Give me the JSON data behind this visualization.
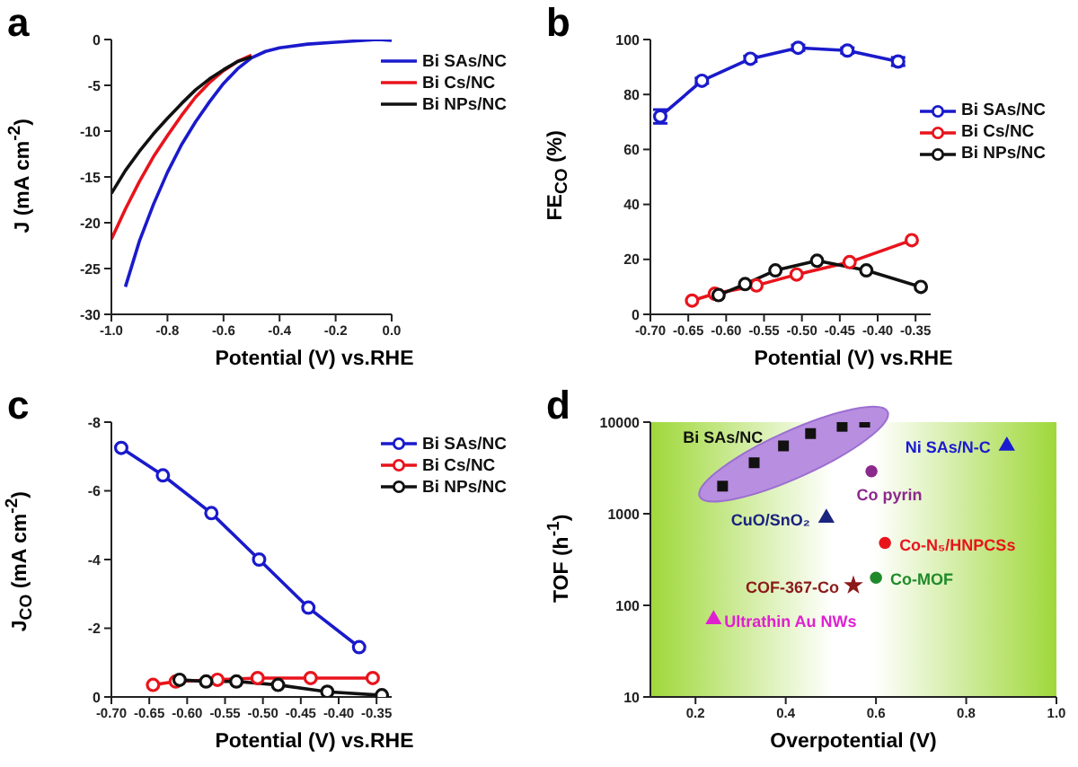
{
  "chart_data": [
    {
      "type": "line",
      "title": "a",
      "xlabel": "Potential (V) vs.RHE",
      "ylabel": "J (mA cm$^{-2}$)",
      "xlim": [
        -1.0,
        0.0
      ],
      "xticks": [
        {
          "value": -1.0,
          "label": "-1.0"
        },
        {
          "value": -0.8,
          "label": "-0.8"
        },
        {
          "value": -0.6,
          "label": "-0.6"
        },
        {
          "value": -0.4,
          "label": "-0.4"
        },
        {
          "value": -0.2,
          "label": "-0.2"
        },
        {
          "value": 0,
          "label": "0.0"
        }
      ],
      "ylim": [
        -30,
        0
      ],
      "yticks": [
        -30,
        -25,
        -20,
        -15,
        -10,
        -5,
        0
      ],
      "legend": "top right",
      "marker": "none",
      "series": [
        {
          "name": "Bi SAs/NC",
          "color": "#1a1acc",
          "x": [
            -0.95,
            -0.9,
            -0.85,
            -0.8,
            -0.75,
            -0.7,
            -0.65,
            -0.6,
            -0.55,
            -0.5,
            -0.45,
            -0.4,
            -0.3,
            -0.2,
            -0.1,
            -0.05,
            0
          ],
          "values": [
            -27,
            -22,
            -18,
            -14.5,
            -11.5,
            -9,
            -6.8,
            -4.8,
            -3.2,
            -2,
            -1.3,
            -0.9,
            -0.5,
            -0.3,
            -0.1,
            0,
            -0.1
          ]
        },
        {
          "name": "Bi Cs/NC",
          "color": "#e8141c",
          "x": [
            -1.0,
            -0.95,
            -0.9,
            -0.85,
            -0.8,
            -0.75,
            -0.7,
            -0.65,
            -0.6,
            -0.55,
            -0.5
          ],
          "values": [
            -21.8,
            -18.5,
            -15.5,
            -12.8,
            -10.5,
            -8.3,
            -6.3,
            -4.7,
            -3.4,
            -2.4,
            -1.7
          ]
        },
        {
          "name": "Bi NPs/NC",
          "color": "#111111",
          "x": [
            -1.0,
            -0.95,
            -0.9,
            -0.85,
            -0.8,
            -0.75,
            -0.7,
            -0.65,
            -0.6,
            -0.55,
            -0.5
          ],
          "values": [
            -16.8,
            -14.3,
            -12.2,
            -10.3,
            -8.6,
            -7,
            -5.5,
            -4.3,
            -3.3,
            -2.4,
            -1.9
          ]
        }
      ]
    },
    {
      "type": "line",
      "title": "b",
      "xlabel": "Potential (V) vs.RHE",
      "ylabel": "FE$_{CO}$ (%)",
      "xlim": [
        -0.7,
        -0.33
      ],
      "xticks": [
        {
          "value": -0.7,
          "label": "-0.70"
        },
        {
          "value": -0.65,
          "label": "-0.65"
        },
        {
          "value": -0.6,
          "label": "-0.60"
        },
        {
          "value": -0.55,
          "label": "-0.55"
        },
        {
          "value": -0.5,
          "label": "-0.50"
        },
        {
          "value": -0.45,
          "label": "-0.45"
        },
        {
          "value": -0.4,
          "label": "-0.40"
        },
        {
          "value": -0.35,
          "label": "-0.35"
        }
      ],
      "ylim": [
        0,
        100
      ],
      "yticks": [
        0,
        20,
        40,
        60,
        80,
        100
      ],
      "legend": "right",
      "marker": "circle",
      "series": [
        {
          "name": "Bi SAs/NC",
          "color": "#1a1acc",
          "x": [
            -0.687,
            -0.632,
            -0.568,
            -0.505,
            -0.44,
            -0.373
          ],
          "values": [
            72,
            85,
            93,
            97,
            96,
            92
          ],
          "errors": [
            2.5,
            1,
            1,
            1,
            1,
            1.5
          ]
        },
        {
          "name": "Bi Cs/NC",
          "color": "#e8141c",
          "x": [
            -0.645,
            -0.615,
            -0.56,
            -0.507,
            -0.437,
            -0.355
          ],
          "values": [
            5,
            7.5,
            10.5,
            14.5,
            19,
            27
          ]
        },
        {
          "name": "Bi NPs/NC",
          "color": "#111111",
          "x": [
            -0.61,
            -0.575,
            -0.535,
            -0.48,
            -0.415,
            -0.343
          ],
          "values": [
            7,
            11,
            16,
            19.5,
            16,
            10
          ]
        }
      ]
    },
    {
      "type": "line",
      "title": "c",
      "xlabel": "Potential (V) vs.RHE",
      "ylabel": "J$_{CO}$ (mA cm$^{-2}$)",
      "xlim": [
        -0.7,
        -0.33
      ],
      "xticks": [
        {
          "value": -0.7,
          "label": "-0.70"
        },
        {
          "value": -0.65,
          "label": "-0.65"
        },
        {
          "value": -0.6,
          "label": "-0.60"
        },
        {
          "value": -0.55,
          "label": "-0.55"
        },
        {
          "value": -0.5,
          "label": "-0.50"
        },
        {
          "value": -0.45,
          "label": "-0.45"
        },
        {
          "value": -0.4,
          "label": "-0.40"
        },
        {
          "value": -0.35,
          "label": "-0.35"
        }
      ],
      "ylim": [
        0,
        -8
      ],
      "yticks": [
        0,
        -2,
        -4,
        -6,
        -8
      ],
      "legend": "top right",
      "marker": "circle",
      "series": [
        {
          "name": "Bi SAs/NC",
          "color": "#1a1acc",
          "x": [
            -0.687,
            -0.632,
            -0.568,
            -0.505,
            -0.44,
            -0.373
          ],
          "values": [
            -7.25,
            -6.45,
            -5.35,
            -4.0,
            -2.6,
            -1.45
          ]
        },
        {
          "name": "Bi Cs/NC",
          "color": "#e8141c",
          "x": [
            -0.645,
            -0.615,
            -0.56,
            -0.507,
            -0.437,
            -0.355
          ],
          "values": [
            -0.35,
            -0.45,
            -0.5,
            -0.55,
            -0.55,
            -0.55
          ]
        },
        {
          "name": "Bi NPs/NC",
          "color": "#111111",
          "x": [
            -0.61,
            -0.575,
            -0.535,
            -0.48,
            -0.415,
            -0.343
          ],
          "values": [
            -0.5,
            -0.45,
            -0.45,
            -0.35,
            -0.15,
            -0.05
          ]
        }
      ]
    },
    {
      "type": "scatter",
      "title": "d",
      "xlabel": "Overpotential (V)",
      "ylabel": "TOF (h$^{-1}$)",
      "xlim": [
        0.1,
        1.0
      ],
      "xticks": [
        0.2,
        0.4,
        0.6,
        0.8,
        {
          "value": 1.0,
          "label": "1.0"
        }
      ],
      "ylim": [
        10,
        10000
      ],
      "yticks": [
        10,
        100,
        1000,
        10000
      ],
      "log": "y",
      "series": [
        {
          "name": "Bi SAs/NC",
          "color": "#111111",
          "marker": "square",
          "x": [
            0.26,
            0.33,
            0.395,
            0.455,
            0.525,
            0.575
          ],
          "values": [
            2000,
            3600,
            5500,
            7500,
            9000,
            10000
          ]
        },
        {
          "name": "Ni SAs/N-C",
          "color": "#1a1ad0",
          "marker": "triangle",
          "x": [
            0.89
          ],
          "values": [
            5500
          ]
        },
        {
          "name": "Co pyrin",
          "color": "#8b2a8b",
          "marker": "circle",
          "x": [
            0.59
          ],
          "values": [
            2900
          ]
        },
        {
          "name": "CuO/SnO₂",
          "color": "#1a237e",
          "marker": "triangle",
          "x": [
            0.49
          ],
          "values": [
            900
          ]
        },
        {
          "name": "Co-N₅/HNPCSs",
          "color": "#e8141c",
          "marker": "circle",
          "x": [
            0.62
          ],
          "values": [
            480
          ]
        },
        {
          "name": "Co-MOF",
          "color": "#1f8a2a",
          "marker": "circle",
          "x": [
            0.6
          ],
          "values": [
            200
          ]
        },
        {
          "name": "COF-367-Co",
          "color": "#8b1a1a",
          "marker": "star",
          "x": [
            0.55
          ],
          "values": [
            165
          ]
        },
        {
          "name": "Ultrathin Au NWs",
          "color": "#e020d0",
          "marker": "triangle",
          "x": [
            0.24
          ],
          "values": [
            70
          ]
        }
      ]
    }
  ]
}
